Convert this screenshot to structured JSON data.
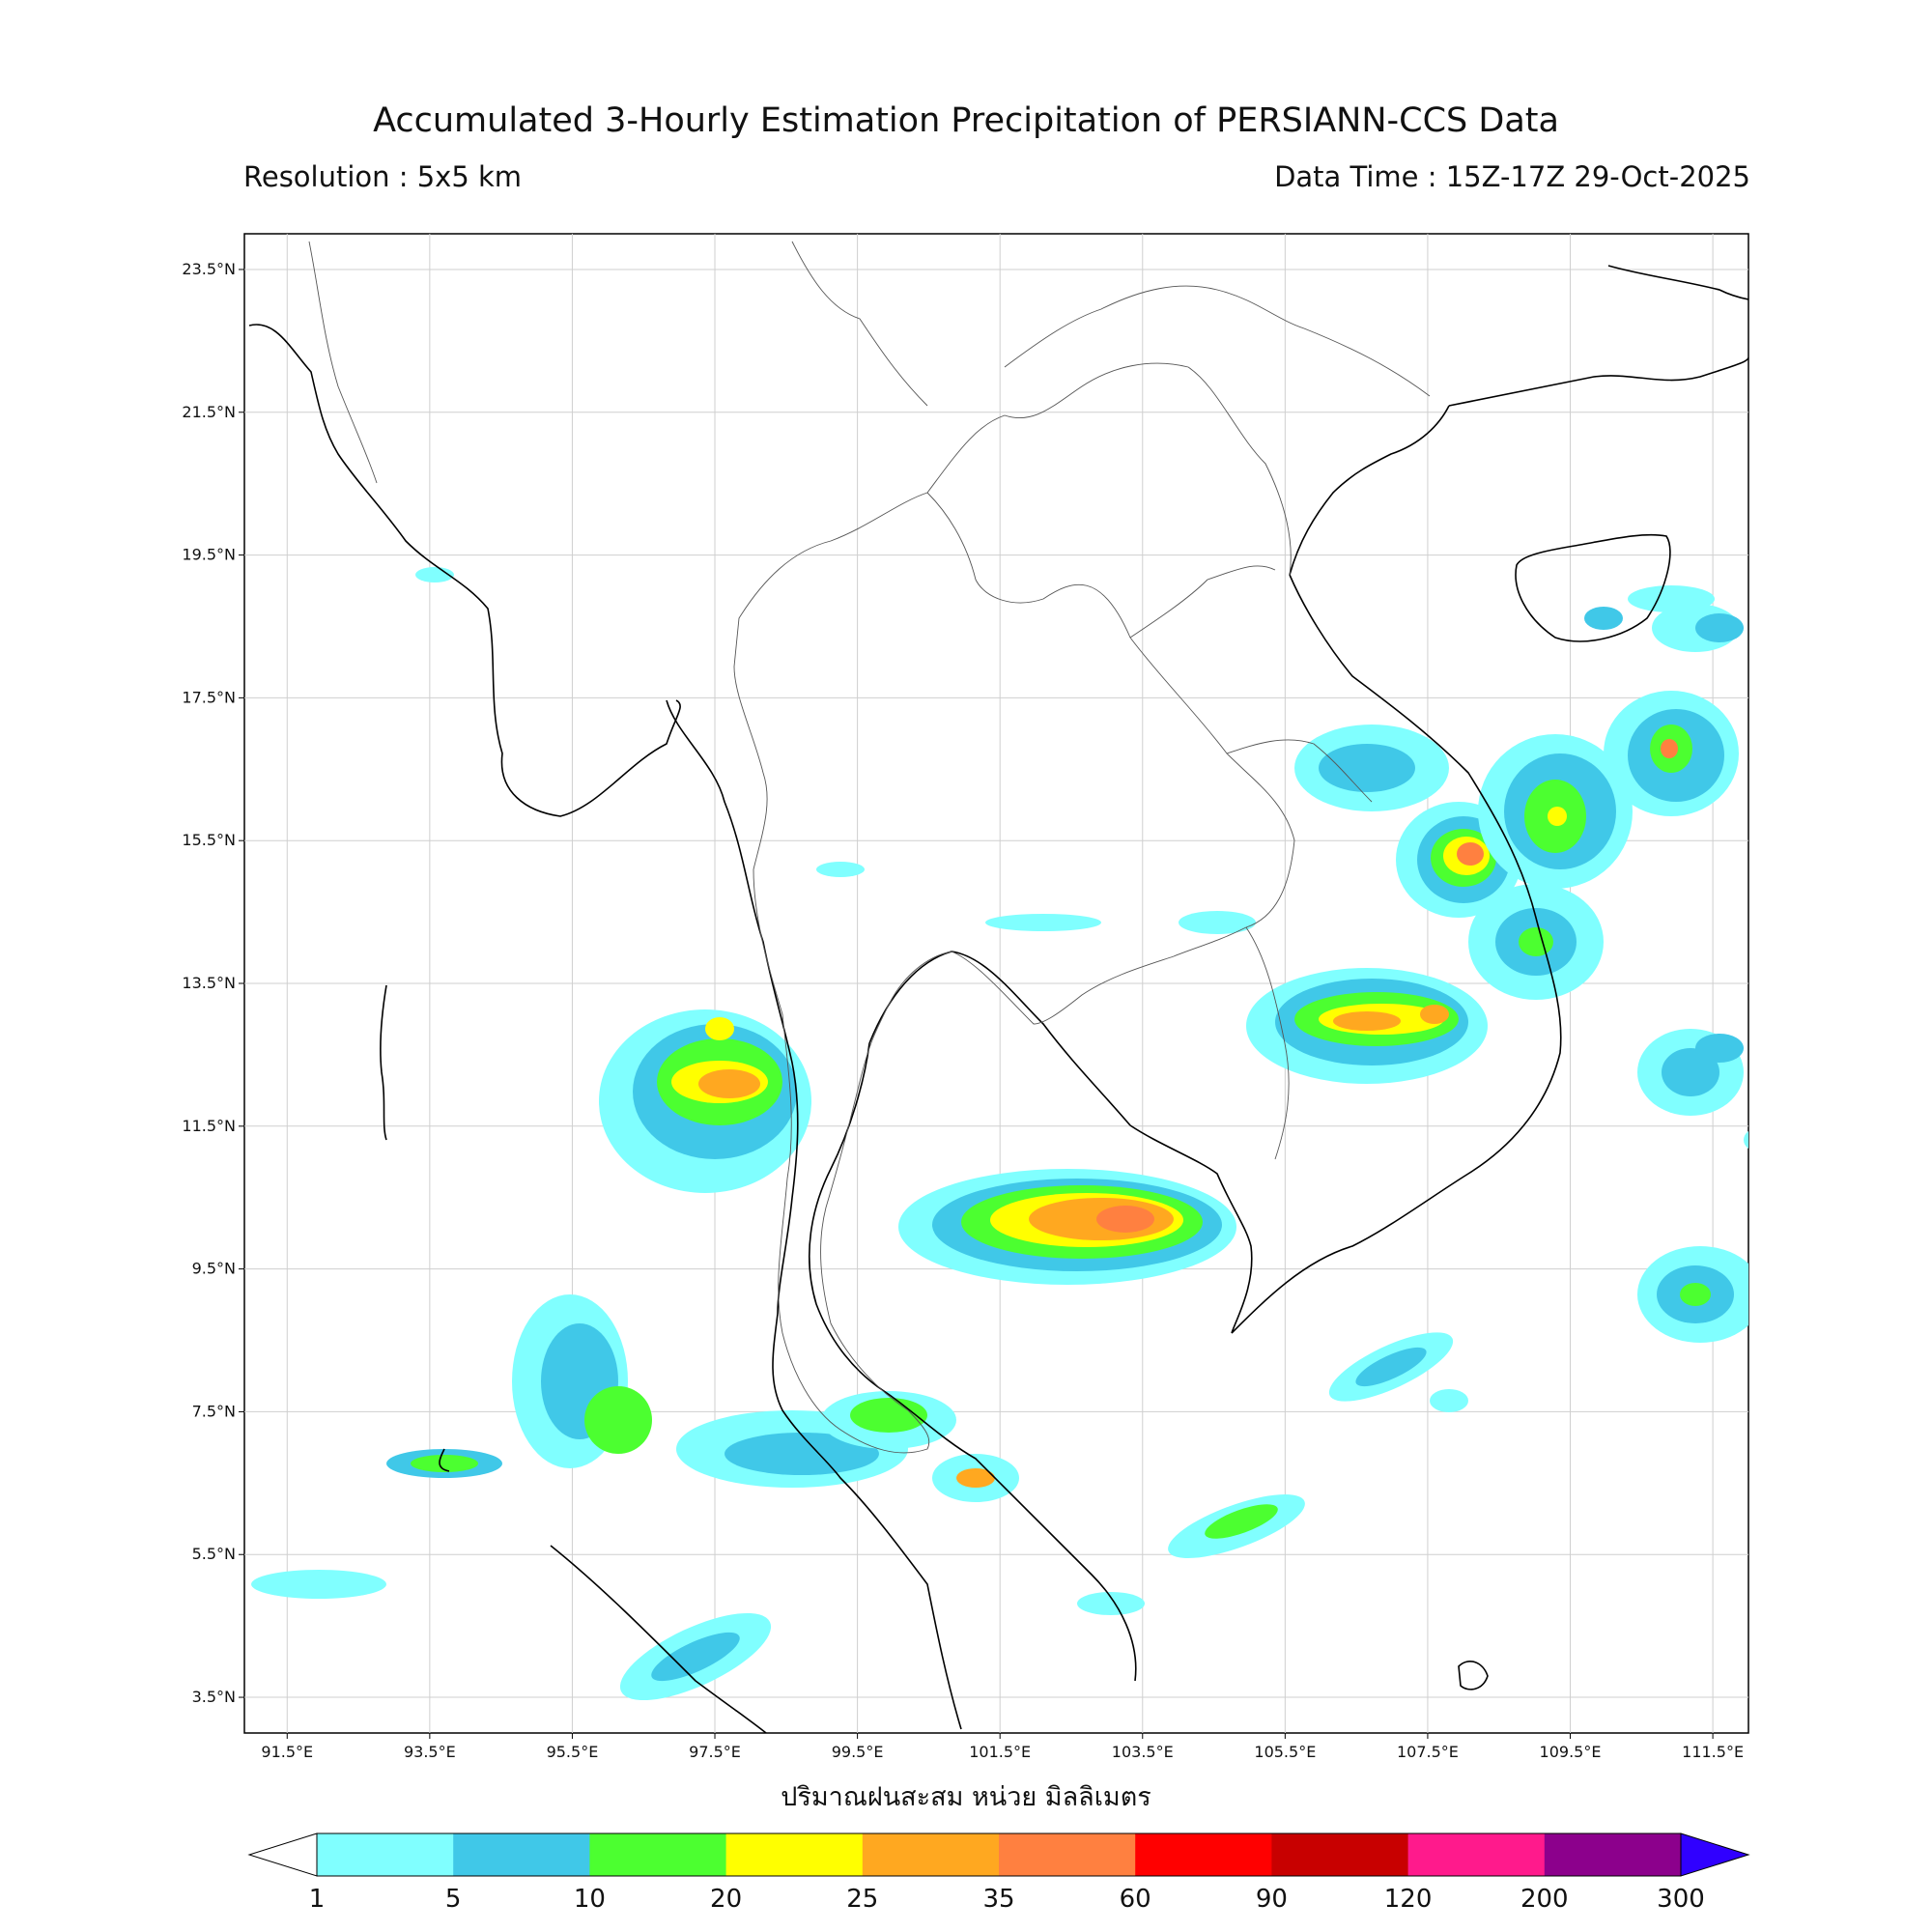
{
  "header": {
    "title": "Accumulated 3-Hourly Estimation Precipitation of PERSIANN-CCS Data",
    "resolution": "Resolution : 5x5 km",
    "data_time": "Data Time : 15Z-17Z 29-Oct-2025"
  },
  "map": {
    "lon_range": [
      90.9,
      112.0
    ],
    "lat_range": [
      3.0,
      24.0
    ],
    "lon_ticks": [
      "91.5°E",
      "93.5°E",
      "95.5°E",
      "97.5°E",
      "99.5°E",
      "101.5°E",
      "103.5°E",
      "105.5°E",
      "107.5°E",
      "109.5°E",
      "111.5°E"
    ],
    "lat_ticks": [
      "23.5°N",
      "21.5°N",
      "19.5°N",
      "17.5°N",
      "15.5°N",
      "13.5°N",
      "11.5°N",
      "9.5°N",
      "7.5°N",
      "5.5°N",
      "3.5°N"
    ],
    "grid": true
  },
  "colorbar": {
    "xlabel": "ปริมาณฝนสะสม หน่วย มิลลิเมตร",
    "levels": [
      "1",
      "5",
      "10",
      "20",
      "25",
      "35",
      "60",
      "90",
      "120",
      "200",
      "300"
    ],
    "colors": [
      "#80ffff",
      "#40c8e8",
      "#4cff30",
      "#ffff00",
      "#ffa820",
      "#ff8040",
      "#ff0000",
      "#c80000",
      "#ff1a8c",
      "#8c008c"
    ],
    "over_color": "#3000ff",
    "under_color": "#ffffff"
  }
}
